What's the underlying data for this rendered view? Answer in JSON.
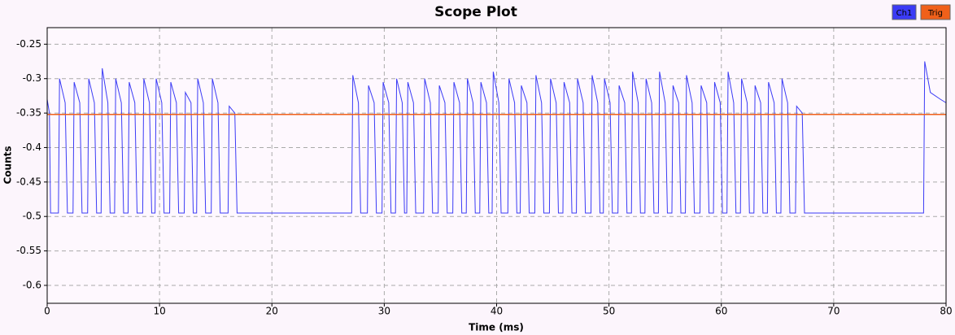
{
  "chart_data": {
    "type": "line",
    "title": "Scope Plot",
    "x_label": "Time (ms)",
    "y_label": "Counts",
    "xlim": [
      0,
      80
    ],
    "xticks": [
      0,
      10,
      20,
      30,
      40,
      50,
      60,
      70,
      80
    ],
    "ylim": [
      -0.626,
      -0.226
    ],
    "yticks": [
      -0.25,
      -0.3,
      -0.35,
      -0.4,
      -0.45,
      -0.5,
      -0.55,
      -0.6
    ],
    "grid": true,
    "legend": "top-right",
    "series": [
      {
        "name": "Ch1",
        "color": "#3b3bf5",
        "x": [
          0,
          0.2,
          0.3,
          1.0,
          1.1,
          1.6,
          1.8,
          2.3,
          2.4,
          2.9,
          3.1,
          3.6,
          3.7,
          4.2,
          4.4,
          4.8,
          4.9,
          5.4,
          5.6,
          6.0,
          6.1,
          6.6,
          6.8,
          7.2,
          7.3,
          7.8,
          8.0,
          8.5,
          8.6,
          9.1,
          9.3,
          9.6,
          9.7,
          10.2,
          10.4,
          10.9,
          11.0,
          11.5,
          11.7,
          12.2,
          12.3,
          12.8,
          13.0,
          13.3,
          13.4,
          13.9,
          14.1,
          14.6,
          14.7,
          15.2,
          15.4,
          16.1,
          16.2,
          16.7,
          16.9,
          27.1,
          27.2,
          27.7,
          27.9,
          28.5,
          28.6,
          29.1,
          29.3,
          29.8,
          29.9,
          30.4,
          30.6,
          31.0,
          31.1,
          31.6,
          31.8,
          32.0,
          32.1,
          32.6,
          32.8,
          33.5,
          33.6,
          34.1,
          34.3,
          34.8,
          34.9,
          35.4,
          35.6,
          36.1,
          36.2,
          36.7,
          36.9,
          37.3,
          37.4,
          37.9,
          38.1,
          38.5,
          38.6,
          39.1,
          39.3,
          39.6,
          39.7,
          40.2,
          40.4,
          41.0,
          41.1,
          41.6,
          41.8,
          42.1,
          42.2,
          42.7,
          42.9,
          43.4,
          43.5,
          44.0,
          44.2,
          44.7,
          44.8,
          45.3,
          45.5,
          45.9,
          46.0,
          46.5,
          46.7,
          47.1,
          47.2,
          47.7,
          47.9,
          48.4,
          48.5,
          49.0,
          49.2,
          49.5,
          49.6,
          50.1,
          50.3,
          50.8,
          50.9,
          51.4,
          51.6,
          52.0,
          52.1,
          52.6,
          52.8,
          53.2,
          53.3,
          53.8,
          54.0,
          54.4,
          54.5,
          55.0,
          55.2,
          55.6,
          55.7,
          56.2,
          56.4,
          56.8,
          56.9,
          57.4,
          57.6,
          58.1,
          58.2,
          58.7,
          58.9,
          59.3,
          59.4,
          59.9,
          60.1,
          60.5,
          60.6,
          61.1,
          61.3,
          61.7,
          61.8,
          62.3,
          62.5,
          62.9,
          63.0,
          63.5,
          63.7,
          64.1,
          64.2,
          64.7,
          64.9,
          65.3,
          65.4,
          65.9,
          66.1,
          66.6,
          66.7,
          67.2,
          67.4,
          78.0,
          78.1,
          78.6,
          79.5,
          80
        ],
        "values": [
          -0.33,
          -0.35,
          -0.495,
          -0.495,
          -0.3,
          -0.335,
          -0.495,
          -0.495,
          -0.305,
          -0.335,
          -0.495,
          -0.495,
          -0.3,
          -0.335,
          -0.495,
          -0.495,
          -0.285,
          -0.335,
          -0.495,
          -0.495,
          -0.3,
          -0.335,
          -0.495,
          -0.495,
          -0.305,
          -0.335,
          -0.495,
          -0.495,
          -0.3,
          -0.335,
          -0.495,
          -0.495,
          -0.3,
          -0.335,
          -0.495,
          -0.495,
          -0.305,
          -0.335,
          -0.495,
          -0.495,
          -0.32,
          -0.335,
          -0.495,
          -0.495,
          -0.3,
          -0.335,
          -0.495,
          -0.495,
          -0.3,
          -0.335,
          -0.495,
          -0.495,
          -0.34,
          -0.35,
          -0.495,
          -0.495,
          -0.295,
          -0.335,
          -0.495,
          -0.495,
          -0.31,
          -0.335,
          -0.495,
          -0.495,
          -0.305,
          -0.335,
          -0.495,
          -0.495,
          -0.3,
          -0.335,
          -0.495,
          -0.495,
          -0.305,
          -0.335,
          -0.495,
          -0.495,
          -0.3,
          -0.335,
          -0.495,
          -0.495,
          -0.31,
          -0.335,
          -0.495,
          -0.495,
          -0.305,
          -0.335,
          -0.495,
          -0.495,
          -0.3,
          -0.335,
          -0.495,
          -0.495,
          -0.305,
          -0.335,
          -0.495,
          -0.495,
          -0.29,
          -0.335,
          -0.495,
          -0.495,
          -0.3,
          -0.335,
          -0.495,
          -0.495,
          -0.31,
          -0.335,
          -0.495,
          -0.495,
          -0.295,
          -0.335,
          -0.495,
          -0.495,
          -0.3,
          -0.335,
          -0.495,
          -0.495,
          -0.305,
          -0.335,
          -0.495,
          -0.495,
          -0.3,
          -0.335,
          -0.495,
          -0.495,
          -0.295,
          -0.335,
          -0.495,
          -0.495,
          -0.3,
          -0.335,
          -0.495,
          -0.495,
          -0.31,
          -0.335,
          -0.495,
          -0.495,
          -0.29,
          -0.335,
          -0.495,
          -0.495,
          -0.3,
          -0.335,
          -0.495,
          -0.495,
          -0.29,
          -0.335,
          -0.495,
          -0.495,
          -0.31,
          -0.335,
          -0.495,
          -0.495,
          -0.295,
          -0.335,
          -0.495,
          -0.495,
          -0.31,
          -0.335,
          -0.495,
          -0.495,
          -0.305,
          -0.335,
          -0.495,
          -0.495,
          -0.29,
          -0.335,
          -0.495,
          -0.495,
          -0.3,
          -0.335,
          -0.495,
          -0.495,
          -0.31,
          -0.335,
          -0.495,
          -0.495,
          -0.305,
          -0.335,
          -0.495,
          -0.495,
          -0.3,
          -0.335,
          -0.495,
          -0.495,
          -0.34,
          -0.35,
          -0.495,
          -0.495,
          -0.275,
          -0.32,
          -0.33,
          -0.335
        ]
      },
      {
        "name": "Trig",
        "color": "#f0601a",
        "x": [
          0,
          80
        ],
        "values": [
          -0.352,
          -0.352
        ]
      }
    ]
  }
}
